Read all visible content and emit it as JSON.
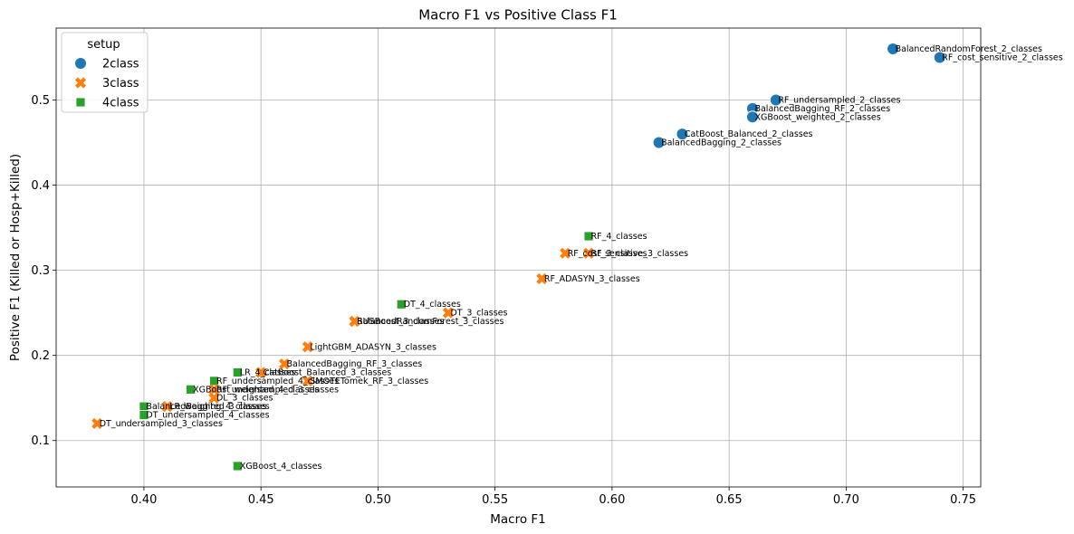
{
  "chart_data": {
    "type": "scatter",
    "title": "Macro F1 vs Positive Class F1",
    "xlabel": "Macro F1",
    "ylabel": "Positive F1 (Killed or Hosp+Killed)",
    "xlim": [
      0.3625,
      0.7575
    ],
    "ylim": [
      0.0455,
      0.5845
    ],
    "xticks": [
      "0.40",
      "0.45",
      "0.50",
      "0.55",
      "0.60",
      "0.65",
      "0.70",
      "0.75"
    ],
    "yticks": [
      "0.1",
      "0.2",
      "0.3",
      "0.4",
      "0.5"
    ],
    "grid": true,
    "legend": {
      "title": "setup",
      "position": "upper-left",
      "entries": [
        "2class",
        "3class",
        "4class"
      ]
    },
    "colors": {
      "2class": "#1f77b4",
      "3class": "#ff7f0e",
      "4class": "#2ca02c"
    },
    "markers": {
      "2class": "circle",
      "3class": "x",
      "4class": "square"
    },
    "series": [
      {
        "name": "2class",
        "points": [
          {
            "label": "BalancedRandomForest_2_classes",
            "x": 0.72,
            "y": 0.56
          },
          {
            "label": "RF_cost_sensitive_2_classes",
            "x": 0.74,
            "y": 0.55
          },
          {
            "label": "RF_undersampled_2_classes",
            "x": 0.67,
            "y": 0.5
          },
          {
            "label": "BalancedBagging_RF_2_classes",
            "x": 0.66,
            "y": 0.49
          },
          {
            "label": "XGBoost_weighted_2_classes",
            "x": 0.66,
            "y": 0.48
          },
          {
            "label": "CatBoost_Balanced_2_classes",
            "x": 0.63,
            "y": 0.46
          },
          {
            "label": "BalancedBagging_2_classes",
            "x": 0.62,
            "y": 0.45
          }
        ]
      },
      {
        "name": "3class",
        "points": [
          {
            "label": "RF_cost_sensitive_3_classes",
            "x": 0.58,
            "y": 0.32
          },
          {
            "label": "RF_3_classes",
            "x": 0.59,
            "y": 0.32
          },
          {
            "label": "RF_ADASYN_3_classes",
            "x": 0.57,
            "y": 0.29
          },
          {
            "label": "DT_3_classes",
            "x": 0.53,
            "y": 0.25
          },
          {
            "label": "BalancedRandomForest_3_classes",
            "x": 0.49,
            "y": 0.24
          },
          {
            "label": "RUSBoost_3_classes",
            "x": 0.49,
            "y": 0.24
          },
          {
            "label": "LightGBM_ADASYN_3_classes",
            "x": 0.47,
            "y": 0.21
          },
          {
            "label": "BalancedBagging_RF_3_classes",
            "x": 0.46,
            "y": 0.19
          },
          {
            "label": "CatBoost_Balanced_3_classes",
            "x": 0.45,
            "y": 0.18
          },
          {
            "label": "SMOTETomek_RF_3_classes",
            "x": 0.47,
            "y": 0.17
          },
          {
            "label": "RF_undersampled_3_classes",
            "x": 0.43,
            "y": 0.16
          },
          {
            "label": "DL_3_classes",
            "x": 0.43,
            "y": 0.15
          },
          {
            "label": "LR_weighted_3_classes",
            "x": 0.41,
            "y": 0.14
          },
          {
            "label": "DT_undersampled_3_classes",
            "x": 0.38,
            "y": 0.12
          }
        ]
      },
      {
        "name": "4class",
        "points": [
          {
            "label": "RF_4_classes",
            "x": 0.59,
            "y": 0.34
          },
          {
            "label": "DT_4_classes",
            "x": 0.51,
            "y": 0.26
          },
          {
            "label": "LR_4_classes",
            "x": 0.44,
            "y": 0.18
          },
          {
            "label": "RF_undersampled_4_classes",
            "x": 0.43,
            "y": 0.17
          },
          {
            "label": "XGBoost_weighted_4_classes",
            "x": 0.42,
            "y": 0.16
          },
          {
            "label": "BalancedBagging_4_classes",
            "x": 0.4,
            "y": 0.14
          },
          {
            "label": "DT_undersampled_4_classes",
            "x": 0.4,
            "y": 0.13
          },
          {
            "label": "XGBoost_4_classes",
            "x": 0.44,
            "y": 0.07
          }
        ]
      }
    ]
  }
}
